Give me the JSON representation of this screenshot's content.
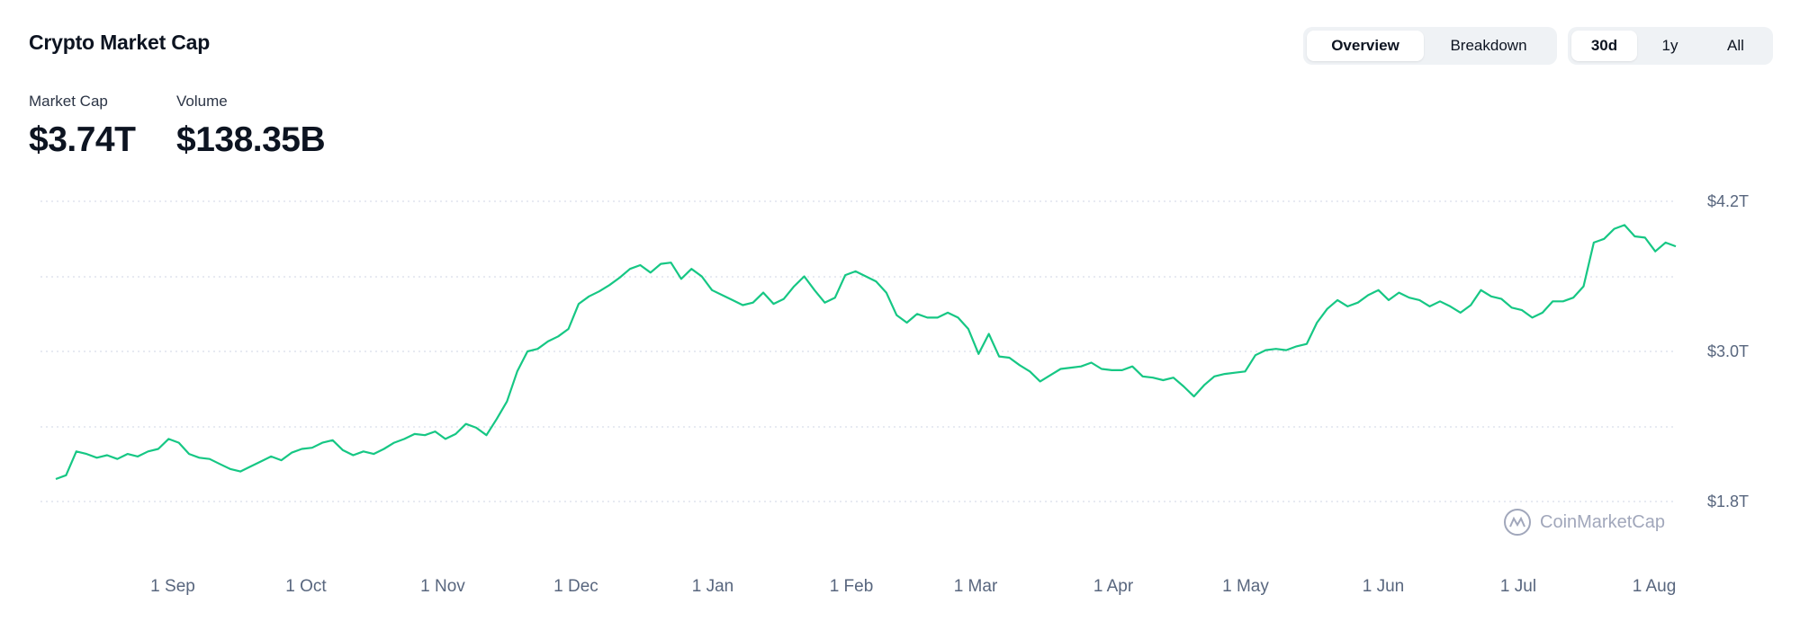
{
  "header": {
    "title": "Crypto Market Cap"
  },
  "stats": {
    "market_cap_label": "Market Cap",
    "market_cap_value": "$3.74T",
    "volume_label": "Volume",
    "volume_value": "$138.35B"
  },
  "view_toggle": {
    "options": [
      "Overview",
      "Breakdown"
    ],
    "selected": "Overview"
  },
  "range_toggle": {
    "options": [
      "30d",
      "1y",
      "All"
    ],
    "selected": "30d"
  },
  "watermark": {
    "text": "CoinMarketCap"
  },
  "colors": {
    "line": "#16c784",
    "grid": "#cfd6e4",
    "text_muted": "#58667e"
  },
  "chart_data": {
    "type": "line",
    "title": "Crypto Market Cap",
    "xlabel": "",
    "ylabel": "",
    "x_tick_labels": [
      "1 Sep",
      "1 Oct",
      "1 Nov",
      "1 Dec",
      "1 Jan",
      "1 Feb",
      "1 Mar",
      "1 Apr",
      "1 May",
      "1 Jun",
      "1 Jul",
      "1 Aug"
    ],
    "y_tick_labels": [
      "$4.2T",
      "$3.0T",
      "$1.8T"
    ],
    "ylim": [
      1.8,
      4.2
    ],
    "grid": true,
    "series": [
      {
        "values": [
          1.98,
          2.01,
          2.2,
          2.18,
          2.15,
          2.17,
          2.14,
          2.18,
          2.16,
          2.2,
          2.22,
          2.3,
          2.27,
          2.18,
          2.15,
          2.14,
          2.1,
          2.06,
          2.04,
          2.08,
          2.12,
          2.16,
          2.13,
          2.19,
          2.22,
          2.23,
          2.27,
          2.29,
          2.21,
          2.17,
          2.2,
          2.18,
          2.22,
          2.27,
          2.3,
          2.34,
          2.33,
          2.36,
          2.3,
          2.34,
          2.42,
          2.39,
          2.33,
          2.46,
          2.6,
          2.84,
          3.0,
          3.02,
          3.08,
          3.12,
          3.18,
          3.38,
          3.44,
          3.48,
          3.53,
          3.59,
          3.66,
          3.69,
          3.63,
          3.7,
          3.71,
          3.58,
          3.66,
          3.6,
          3.49,
          3.45,
          3.41,
          3.37,
          3.39,
          3.47,
          3.38,
          3.42,
          3.52,
          3.6,
          3.49,
          3.39,
          3.43,
          3.61,
          3.64,
          3.6,
          3.56,
          3.47,
          3.29,
          3.23,
          3.3,
          3.27,
          3.27,
          3.31,
          3.27,
          3.18,
          2.98,
          3.14,
          2.96,
          2.95,
          2.89,
          2.84,
          2.76,
          2.81,
          2.86,
          2.87,
          2.88,
          2.91,
          2.86,
          2.85,
          2.85,
          2.88,
          2.8,
          2.79,
          2.77,
          2.79,
          2.72,
          2.64,
          2.73,
          2.8,
          2.82,
          2.83,
          2.84,
          2.97,
          3.01,
          3.02,
          3.01,
          3.04,
          3.06,
          3.23,
          3.34,
          3.41,
          3.36,
          3.39,
          3.45,
          3.49,
          3.41,
          3.47,
          3.43,
          3.41,
          3.36,
          3.4,
          3.36,
          3.31,
          3.37,
          3.49,
          3.44,
          3.42,
          3.35,
          3.33,
          3.27,
          3.31,
          3.4,
          3.4,
          3.43,
          3.52,
          3.87,
          3.9,
          3.98,
          4.01,
          3.92,
          3.91,
          3.8,
          3.87,
          3.84
        ]
      }
    ]
  }
}
